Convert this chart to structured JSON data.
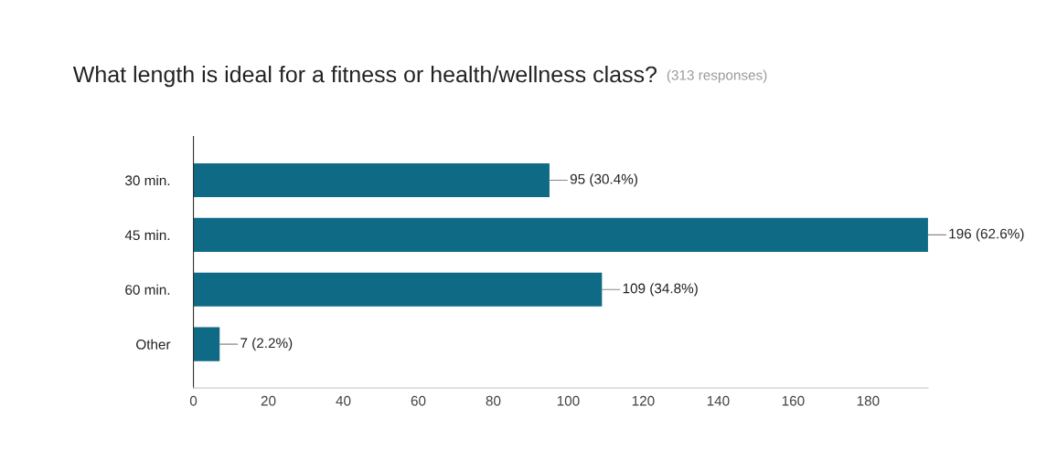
{
  "chart_data": {
    "type": "bar",
    "orientation": "horizontal",
    "title": "What length is ideal for a fitness or health/wellness class?",
    "subtitle": "(313 responses)",
    "categories": [
      "30 min.",
      "45 min.",
      "60 min.",
      "Other"
    ],
    "values": [
      95,
      196,
      109,
      7
    ],
    "value_labels": [
      "95 (30.4%)",
      "196 (62.6%)",
      "109 (34.8%)",
      "7 (2.2%)"
    ],
    "color": "#0e6a85",
    "xlim": [
      0,
      196
    ],
    "xticks": [
      0,
      20,
      40,
      60,
      80,
      100,
      120,
      140,
      160,
      180
    ],
    "grid": false,
    "legend": false
  }
}
